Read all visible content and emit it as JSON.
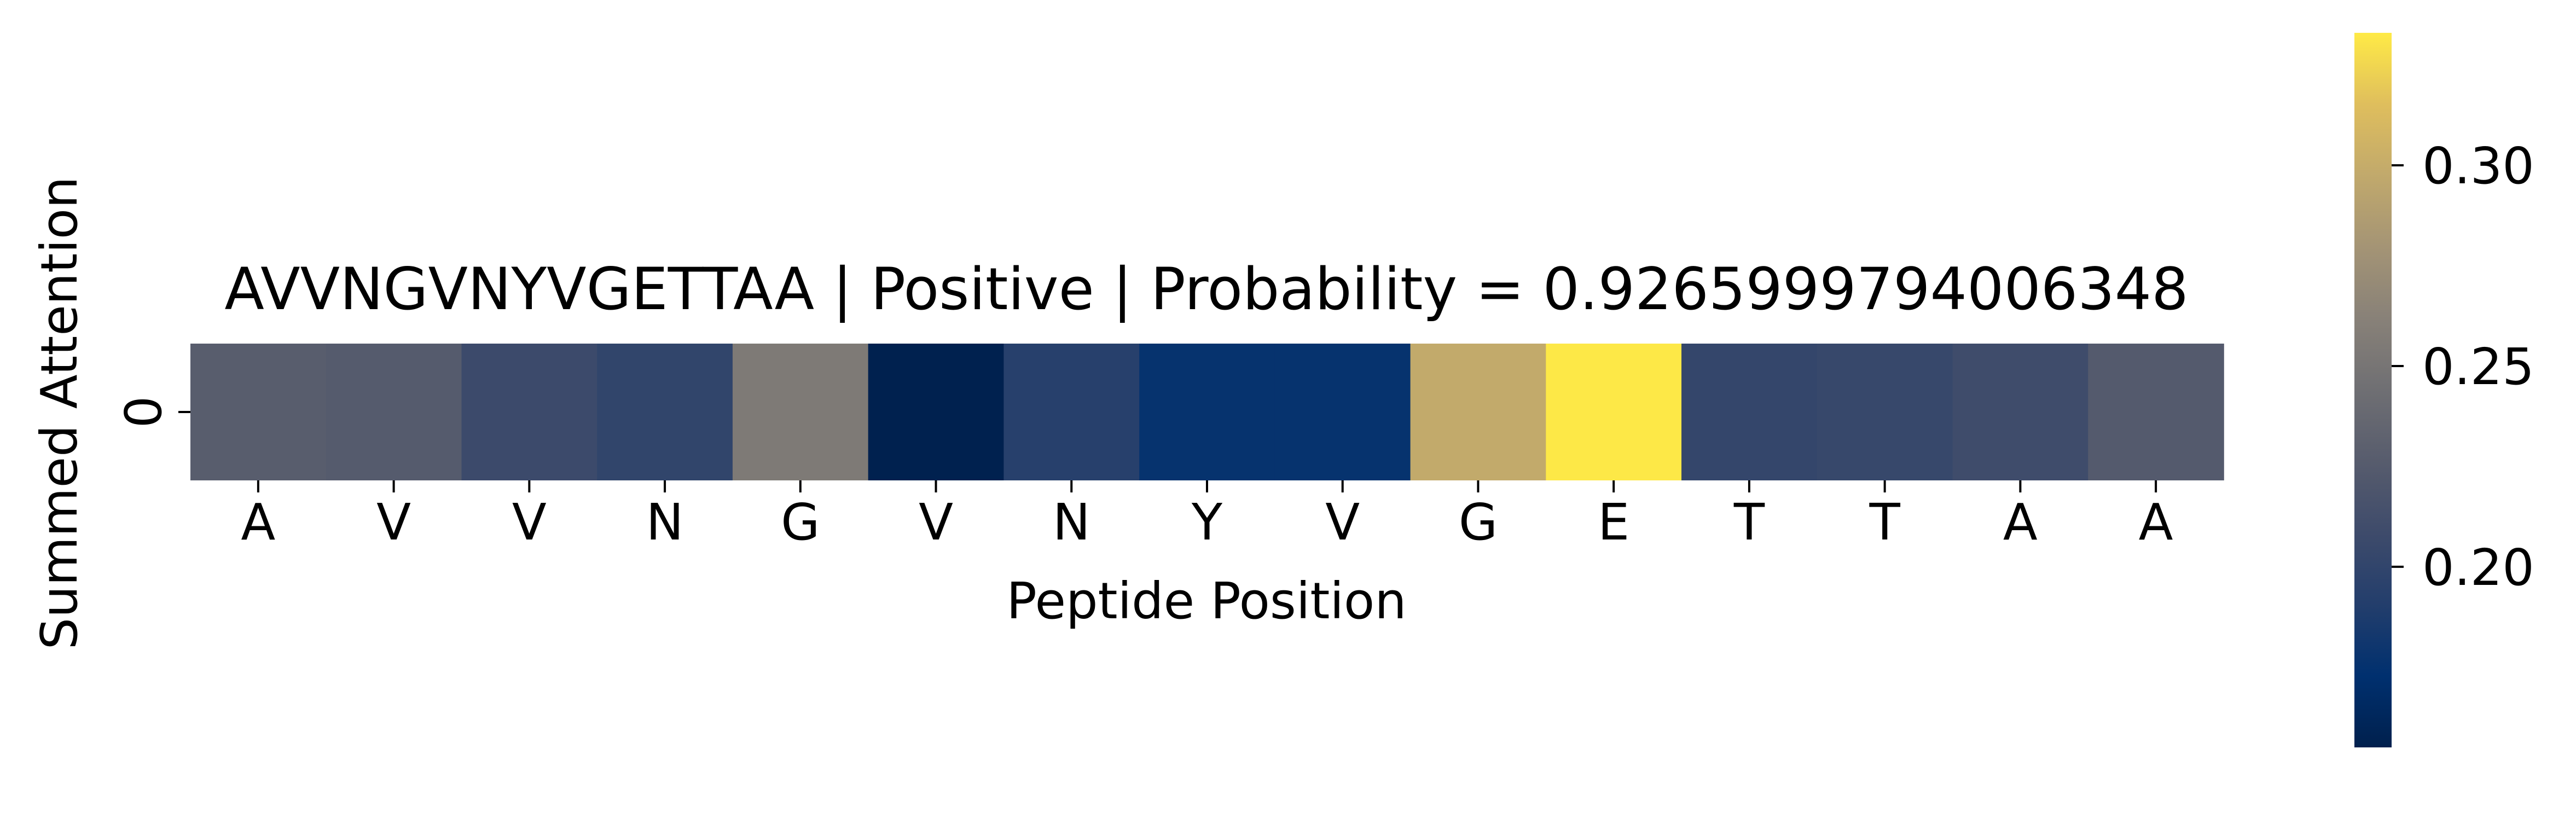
{
  "chart_data": {
    "type": "heatmap",
    "title": "AVVNGVNYVGETTAA | Positive | Probability = 0.9265999794006348",
    "xlabel": "Peptide Position",
    "ylabel": "Summed Attention",
    "x_tick_labels": [
      "A",
      "V",
      "V",
      "N",
      "G",
      "V",
      "N",
      "Y",
      "V",
      "G",
      "E",
      "T",
      "T",
      "A",
      "A"
    ],
    "y_tick_labels": [
      "0"
    ],
    "rows": [
      {
        "label": "0",
        "values": [
          0.227,
          0.225,
          0.207,
          0.2,
          0.255,
          0.156,
          0.193,
          0.176,
          0.176,
          0.298,
          0.332,
          0.202,
          0.204,
          0.209,
          0.224
        ]
      }
    ],
    "colormap": "cividis",
    "color_range": [
      0.155,
      0.333
    ],
    "colorbar": {
      "ticks": [
        0.2,
        0.25,
        0.3
      ],
      "tick_labels": [
        "0.20",
        "0.25",
        "0.30"
      ]
    }
  }
}
